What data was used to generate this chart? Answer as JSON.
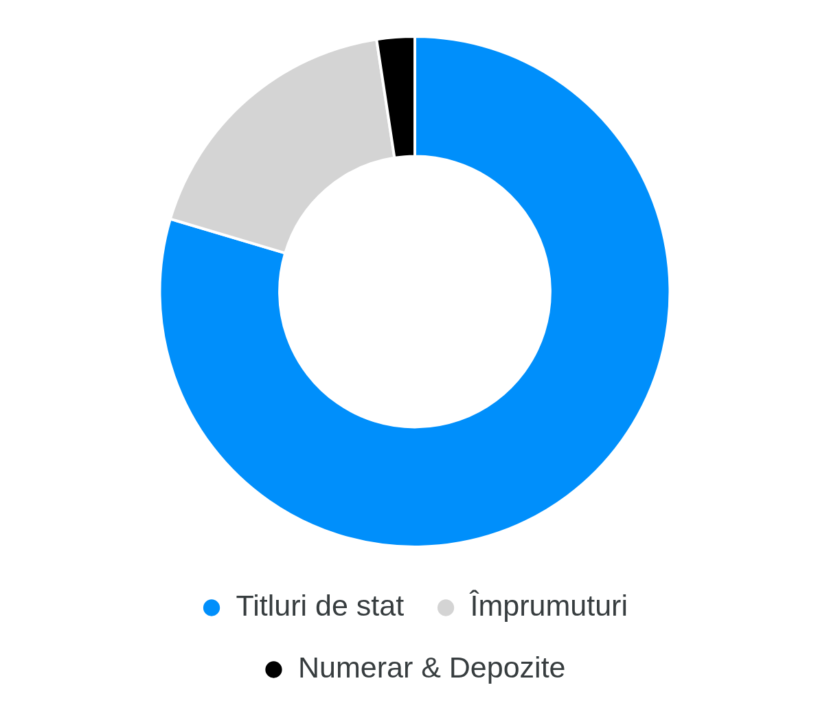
{
  "chart_data": {
    "type": "donut",
    "categories": [
      "Titluri de stat",
      "Împrumuturi",
      "Numerar & Depozite"
    ],
    "values": [
      79.6,
      18,
      2.4
    ],
    "colors": [
      "#008ffb",
      "#d4d4d4",
      "#000000"
    ],
    "legend": "bottom"
  }
}
